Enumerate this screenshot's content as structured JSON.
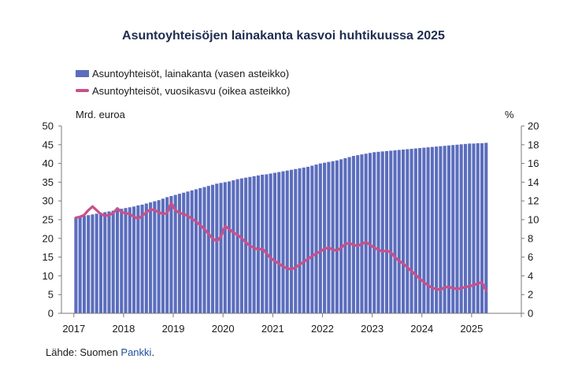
{
  "chart_data": {
    "type": "bar",
    "title": "Asuntoyhteisöjen lainakanta kasvoi huhtikuussa 2025",
    "left_axis_unit": "Mrd. euroa",
    "right_axis_unit": "%",
    "left_ylim": [
      0,
      50
    ],
    "left_ticks": [
      "0",
      "5",
      "10",
      "15",
      "20",
      "25",
      "30",
      "35",
      "40",
      "45",
      "50"
    ],
    "right_ylim": [
      0,
      20
    ],
    "right_ticks": [
      "0",
      "2",
      "4",
      "6",
      "8",
      "10",
      "12",
      "14",
      "16",
      "18",
      "20"
    ],
    "x_ticks": [
      "2017",
      "2018",
      "2019",
      "2020",
      "2021",
      "2022",
      "2023",
      "2024",
      "2025"
    ],
    "x_start": "2017-01",
    "x_end": "2025-04",
    "legend_position": "top-left",
    "grid": false,
    "colors": {
      "bars": "#5b6dbd",
      "line": "#c9508a"
    },
    "series": [
      {
        "name": "Asuntoyhteisöt, lainakanta (vasen asteikko)",
        "type": "bar",
        "axis": "left",
        "values": [
          25.6,
          25.8,
          26.0,
          26.2,
          26.4,
          26.6,
          26.8,
          27.0,
          27.2,
          27.4,
          27.6,
          27.9,
          28.1,
          28.3,
          28.5,
          28.8,
          29.0,
          29.3,
          29.6,
          29.9,
          30.2,
          30.6,
          31.0,
          31.3,
          31.6,
          31.9,
          32.2,
          32.5,
          32.8,
          33.1,
          33.4,
          33.7,
          34.0,
          34.3,
          34.6,
          34.8,
          35.0,
          35.2,
          35.5,
          35.8,
          36.0,
          36.2,
          36.4,
          36.6,
          36.8,
          37.0,
          37.1,
          37.3,
          37.5,
          37.7,
          37.9,
          38.1,
          38.3,
          38.5,
          38.7,
          38.9,
          39.1,
          39.4,
          39.7,
          40.0,
          40.2,
          40.4,
          40.6,
          40.8,
          41.1,
          41.4,
          41.7,
          42.0,
          42.2,
          42.4,
          42.6,
          42.8,
          43.0,
          43.1,
          43.2,
          43.3,
          43.4,
          43.5,
          43.6,
          43.7,
          43.8,
          43.9,
          44.0,
          44.1,
          44.2,
          44.3,
          44.4,
          44.5,
          44.6,
          44.7,
          44.8,
          44.9,
          45.0,
          45.1,
          45.2,
          45.3,
          45.3,
          45.4,
          45.4,
          45.5
        ]
      },
      {
        "name": "Asuntoyhteisöt, vuosikasvu (oikea asteikko)",
        "type": "line",
        "axis": "right",
        "values": [
          10.2,
          10.3,
          10.5,
          11.0,
          11.4,
          11.0,
          10.6,
          10.4,
          10.5,
          10.7,
          11.2,
          10.8,
          10.7,
          10.6,
          10.3,
          10.1,
          10.4,
          10.8,
          11.1,
          11.0,
          10.8,
          10.6,
          10.7,
          11.8,
          11.0,
          10.7,
          10.6,
          10.4,
          10.1,
          9.8,
          9.4,
          9.0,
          8.5,
          8.0,
          7.7,
          8.2,
          9.3,
          9.0,
          8.6,
          8.4,
          8.0,
          7.6,
          7.2,
          7.0,
          6.8,
          6.9,
          6.4,
          5.9,
          5.6,
          5.3,
          5.0,
          4.8,
          4.7,
          4.9,
          5.2,
          5.5,
          5.8,
          6.1,
          6.4,
          6.6,
          6.9,
          7.0,
          6.8,
          6.7,
          7.0,
          7.4,
          7.5,
          7.3,
          7.2,
          7.4,
          7.6,
          7.3,
          7.0,
          6.8,
          6.6,
          6.7,
          6.5,
          6.0,
          5.6,
          5.3,
          4.9,
          4.5,
          4.1,
          3.7,
          3.3,
          3.0,
          2.7,
          2.6,
          2.5,
          2.8,
          2.8,
          2.7,
          2.6,
          2.7,
          2.8,
          2.9,
          3.0,
          3.2,
          3.3,
          2.4
        ]
      }
    ]
  },
  "source": {
    "prefix": "Lähde: Suomen ",
    "link": "Pankki",
    "suffix": "."
  }
}
